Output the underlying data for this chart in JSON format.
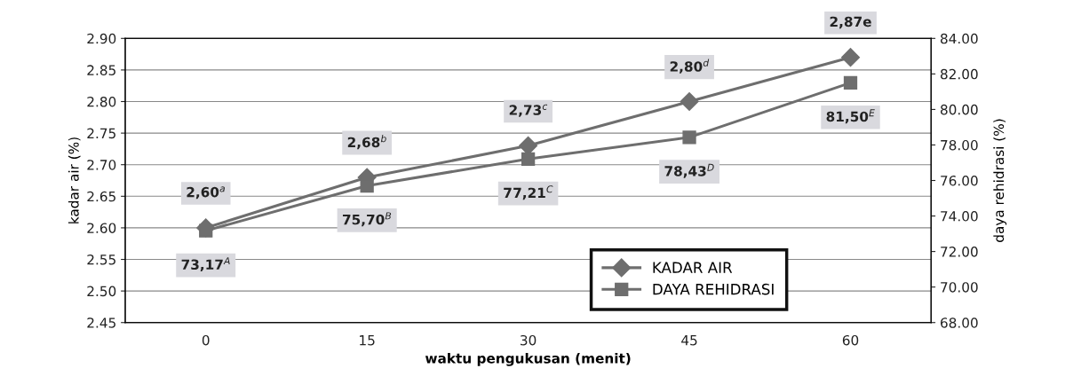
{
  "chart_data": {
    "type": "line",
    "xlabel": "waktu pengukusan (menit)",
    "ylabel": "kadar air (%)",
    "y2label": "daya rehidrasi (%)",
    "categories": [
      "0",
      "15",
      "30",
      "45",
      "60"
    ],
    "series": [
      {
        "name": "KADAR AIR",
        "color": "#6e6e6e",
        "marker": "diamond",
        "values": [
          2.6,
          2.68,
          2.73,
          2.8,
          2.87
        ],
        "value_labels": [
          "2,60$^{a}$",
          "2,68$^{b}$",
          "2,73$^{c}$",
          "2,80$^{d}$",
          "2,87e"
        ]
      },
      {
        "name": "DAYA REHIDRASI",
        "color": "#6e6e6e",
        "marker": "square",
        "axis": "y2",
        "values": [
          73.17,
          75.7,
          77.21,
          78.43,
          81.5
        ],
        "value_labels": [
          "73,17$^{A}$",
          "75,70$^{B}$",
          "77,21$^{C}$",
          "78,43$^{D}$",
          "81,50$^{E}$"
        ]
      }
    ],
    "ylim": [
      2.45,
      2.9
    ],
    "yticks": [
      {
        "value": 2.45,
        "label": "2.45"
      },
      {
        "value": 2.5,
        "label": "2.50"
      },
      {
        "value": 2.55,
        "label": "2.55"
      },
      {
        "value": 2.6,
        "label": "2.60"
      },
      {
        "value": 2.65,
        "label": "2.65"
      },
      {
        "value": 2.7,
        "label": "2.70"
      },
      {
        "value": 2.75,
        "label": "2.75"
      },
      {
        "value": 2.8,
        "label": "2.80"
      },
      {
        "value": 2.85,
        "label": "2.85"
      },
      {
        "value": 2.9,
        "label": "2.90"
      }
    ],
    "y2lim": [
      68,
      84
    ],
    "y2ticks": [
      {
        "value": 68,
        "label": "68.00"
      },
      {
        "value": 70,
        "label": "70.00"
      },
      {
        "value": 72,
        "label": "72.00"
      },
      {
        "value": 74,
        "label": "74.00"
      },
      {
        "value": 76,
        "label": "76.00"
      },
      {
        "value": 78,
        "label": "78.00"
      },
      {
        "value": 80,
        "label": "80.00"
      },
      {
        "value": 82,
        "label": "82.00"
      },
      {
        "value": 84,
        "label": "84.00"
      }
    ],
    "grid": "y",
    "legend": "bottom right",
    "line_style": "solid"
  }
}
